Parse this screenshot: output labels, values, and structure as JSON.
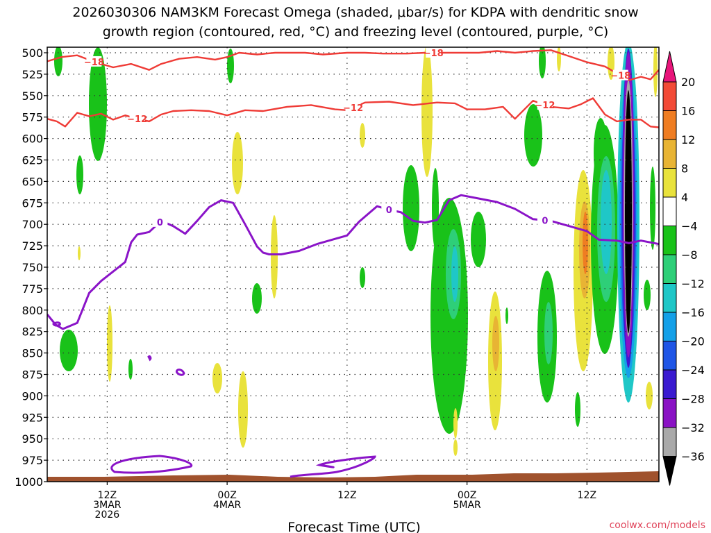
{
  "chart_data": {
    "type": "heatmap",
    "title_line1": "2026030306 NAM3KM Forecast Omega (shaded, μbar/s) for KDPA with dendritic snow",
    "title_line2": "growth region (contoured, red, °C) and freezing level (contoured, purple, °C)",
    "xlabel": "Forecast Time (UTC)",
    "credit": "coolwx.com/models",
    "y_levels": [
      500,
      525,
      550,
      575,
      600,
      625,
      650,
      675,
      700,
      725,
      750,
      775,
      800,
      825,
      850,
      875,
      900,
      925,
      950,
      975,
      1000
    ],
    "x_range_hours": [
      0,
      51
    ],
    "x_ticks": [
      {
        "hour": 5,
        "lines": [
          "12Z",
          "3MAR",
          "2026"
        ]
      },
      {
        "hour": 15,
        "lines": [
          "00Z",
          "4MAR"
        ]
      },
      {
        "hour": 25,
        "lines": [
          "12Z",
          ""
        ]
      },
      {
        "hour": 35,
        "lines": [
          "00Z",
          "5MAR"
        ]
      },
      {
        "hour": 45,
        "lines": [
          "12Z",
          ""
        ]
      }
    ],
    "colorbar": {
      "labels": [
        "20",
        "16",
        "12",
        "8",
        "4",
        "−4",
        "−8",
        "−12",
        "−16",
        "−20",
        "−24",
        "−28",
        "−32",
        "−36"
      ],
      "colors": [
        "#e8157a",
        "#f24a36",
        "#ef7d22",
        "#e8b434",
        "#e9e23c",
        "#ffffff",
        "#19c219",
        "#2ecf78",
        "#1fc7c7",
        "#14a0e8",
        "#1f55e6",
        "#3a1ad0",
        "#8a12c4",
        "#a9a9a9",
        "#000000"
      ]
    },
    "contour_labels": {
      "dgz_upper": "−18",
      "dgz_lower": "−12",
      "freezing": "0"
    },
    "series": [
      {
        "name": "−18",
        "color": "#ef3b36",
        "x": [
          0,
          1.2,
          2.5,
          4,
          5.5,
          7,
          8.5,
          9.5,
          11,
          12.5,
          14,
          15,
          16,
          17.5,
          19,
          20,
          21.5,
          23,
          25,
          26.5,
          28,
          30,
          31.5,
          33,
          34.5,
          36,
          37.5,
          39,
          40.5,
          42,
          43.5,
          45,
          46.5,
          47.5,
          48.5,
          49.5,
          50.3,
          51
        ],
        "y": [
          510,
          505,
          503,
          511,
          517,
          513,
          520,
          513,
          507,
          505,
          508,
          505,
          500,
          502,
          500,
          500,
          500,
          502,
          500,
          500,
          501,
          501,
          500,
          500,
          500,
          500,
          498,
          500,
          498,
          497,
          504,
          511,
          516,
          524,
          532,
          528,
          531,
          520
        ]
      },
      {
        "name": "−12",
        "color": "#ef3b36",
        "x": [
          0,
          0.8,
          1.5,
          2.5,
          3.5,
          4.5,
          5.5,
          6.5,
          7,
          8.5,
          9.5,
          10.5,
          12,
          13.5,
          15,
          16.5,
          18,
          20,
          22,
          24,
          25,
          26.5,
          28.5,
          30.5,
          32.5,
          34,
          35,
          36.5,
          38,
          39,
          40.5,
          42,
          43.5,
          44.5,
          45.5,
          46.5,
          47.5,
          48.5,
          49.5,
          50.3,
          51
        ],
        "y": [
          577,
          580,
          586,
          570,
          574,
          571,
          578,
          573,
          575,
          580,
          572,
          568,
          567,
          568,
          573,
          567,
          568,
          563,
          561,
          566,
          567,
          558,
          557,
          561,
          558,
          559,
          566,
          566,
          563,
          577,
          556,
          563,
          565,
          560,
          553,
          572,
          580,
          578,
          578,
          586,
          587
        ]
      },
      {
        "name": "0",
        "color": "#8a14c8",
        "x": [
          0,
          0.7,
          1.3,
          2.5,
          3.5,
          4.5,
          5.5,
          6.5,
          7,
          7.5,
          8.5,
          9.5,
          10.5,
          11.5,
          12.5,
          13.5,
          14.5,
          15.5,
          16.5,
          17.5,
          18,
          18.5,
          19.5,
          21,
          22.5,
          24,
          25,
          26,
          27.5,
          28.5,
          29.5,
          30.5,
          31.5,
          32.5,
          33.5,
          34.5,
          36,
          37.5,
          39,
          40.5,
          42,
          43.5,
          45,
          46,
          47.5,
          48.5,
          49.5,
          51
        ],
        "y": [
          805,
          817,
          822,
          815,
          780,
          766,
          755,
          744,
          721,
          712,
          709,
          696,
          702,
          711,
          696,
          680,
          672,
          675,
          700,
          726,
          733,
          735,
          735,
          731,
          723,
          717,
          713,
          697,
          679,
          683,
          686,
          696,
          698,
          695,
          672,
          666,
          670,
          674,
          682,
          694,
          696,
          702,
          708,
          718,
          719,
          722,
          719,
          723
        ]
      }
    ]
  }
}
